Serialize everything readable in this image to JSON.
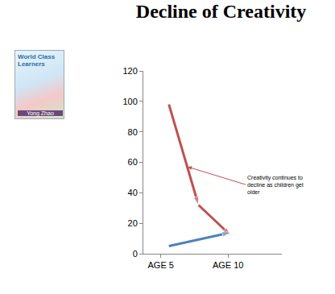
{
  "chart_data": {
    "type": "line",
    "title": "Decline of Creativity",
    "series": [
      {
        "color": "#C0504D",
        "x": [
          5.6,
          7.8,
          10.2
        ],
        "values": [
          98,
          32,
          12
        ],
        "marker": "arrow",
        "line_style": "solid"
      },
      {
        "color": "#4F81BD",
        "x": [
          5.6,
          10.2
        ],
        "values": [
          5,
          14
        ],
        "marker": "arrow",
        "line_style": "solid"
      }
    ],
    "xlim": [
      3.7,
      14
    ],
    "xticks": [
      {
        "value": 5,
        "label": "AGE 5"
      },
      {
        "value": 10,
        "label": "AGE 10"
      }
    ],
    "ylim": [
      0,
      120
    ],
    "yticks": [
      0,
      20,
      40,
      60,
      80,
      100,
      120
    ],
    "grid": false,
    "annotations": [
      {
        "text": "Creativity continues to decline as children get older",
        "x": 7.0,
        "y": 57
      }
    ]
  },
  "cover": {
    "title": "World Class Learners",
    "author": "Yong Zhao"
  }
}
